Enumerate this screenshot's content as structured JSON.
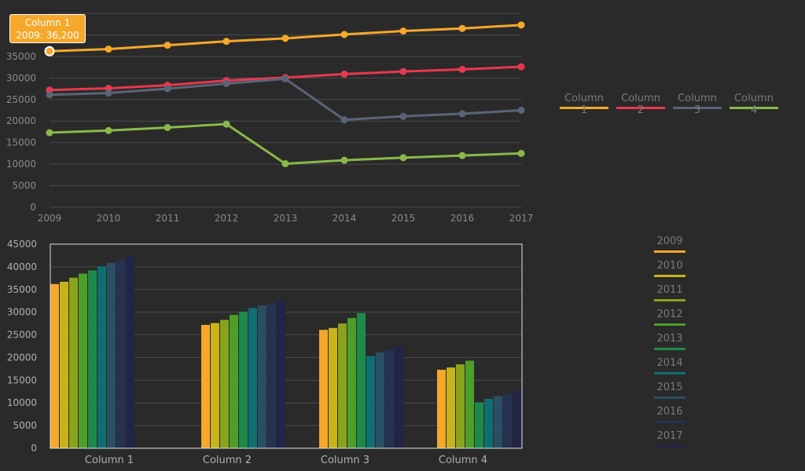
{
  "colors": {
    "background": "#2a2a2a",
    "grid": "#4a4a4a",
    "axis_text": "#8a8a8a",
    "bar_axis_text": "#b0b0b0",
    "plot_border": "#e0e0e0"
  },
  "tooltip": {
    "title": "Column 1",
    "text": "2009: 36,200"
  },
  "chart_data": [
    {
      "type": "line",
      "x": [
        "2009",
        "2010",
        "2011",
        "2012",
        "2013",
        "2014",
        "2015",
        "2016",
        "2017"
      ],
      "ylim": [
        0,
        45000
      ],
      "yticks": [
        "0",
        "5000",
        "10000",
        "15000",
        "20000",
        "25000",
        "30000",
        "35000"
      ],
      "grid": true,
      "legend_position": "right",
      "series": [
        {
          "name": "Column 1",
          "color": "#f5a82a",
          "values": [
            36200,
            36700,
            37600,
            38500,
            39200,
            40100,
            40900,
            41500,
            42300
          ]
        },
        {
          "name": "Column 2",
          "color": "#e8384f",
          "values": [
            27200,
            27600,
            28300,
            29400,
            30100,
            30900,
            31500,
            32000,
            32600
          ]
        },
        {
          "name": "Column 3",
          "color": "#5a6478",
          "values": [
            26100,
            26500,
            27500,
            28700,
            29800,
            20300,
            21100,
            21700,
            22500
          ]
        },
        {
          "name": "Column 4",
          "color": "#8ab84a",
          "values": [
            17300,
            17800,
            18500,
            19300,
            10100,
            10900,
            11500,
            12000,
            12500
          ]
        }
      ]
    },
    {
      "type": "bar",
      "categories": [
        "Column 1",
        "Column 2",
        "Column 3",
        "Column 4"
      ],
      "ylim": [
        0,
        45000
      ],
      "yticks": [
        "0",
        "5000",
        "10000",
        "15000",
        "20000",
        "25000",
        "30000",
        "35000",
        "40000",
        "45000"
      ],
      "grid": true,
      "legend_position": "right",
      "series": [
        {
          "name": "2009",
          "color": "#f5a82a",
          "values": [
            36200,
            27200,
            26100,
            17300
          ]
        },
        {
          "name": "2010",
          "color": "#c9b21a",
          "values": [
            36700,
            27600,
            26500,
            17800
          ]
        },
        {
          "name": "2011",
          "color": "#8aa31c",
          "values": [
            37600,
            28300,
            27500,
            18500
          ]
        },
        {
          "name": "2012",
          "color": "#4e9e2a",
          "values": [
            38500,
            29400,
            28700,
            19300
          ]
        },
        {
          "name": "2013",
          "color": "#1e8a4a",
          "values": [
            39200,
            30100,
            29800,
            10100
          ]
        },
        {
          "name": "2014",
          "color": "#0e6e72",
          "values": [
            40100,
            30900,
            20300,
            10900
          ]
        },
        {
          "name": "2015",
          "color": "#2a4e62",
          "values": [
            40900,
            31500,
            21100,
            11500
          ]
        },
        {
          "name": "2016",
          "color": "#263252",
          "values": [
            41500,
            32000,
            21700,
            12000
          ]
        },
        {
          "name": "2017",
          "color": "#222448",
          "values": [
            42300,
            32600,
            22500,
            12500
          ]
        }
      ]
    }
  ]
}
